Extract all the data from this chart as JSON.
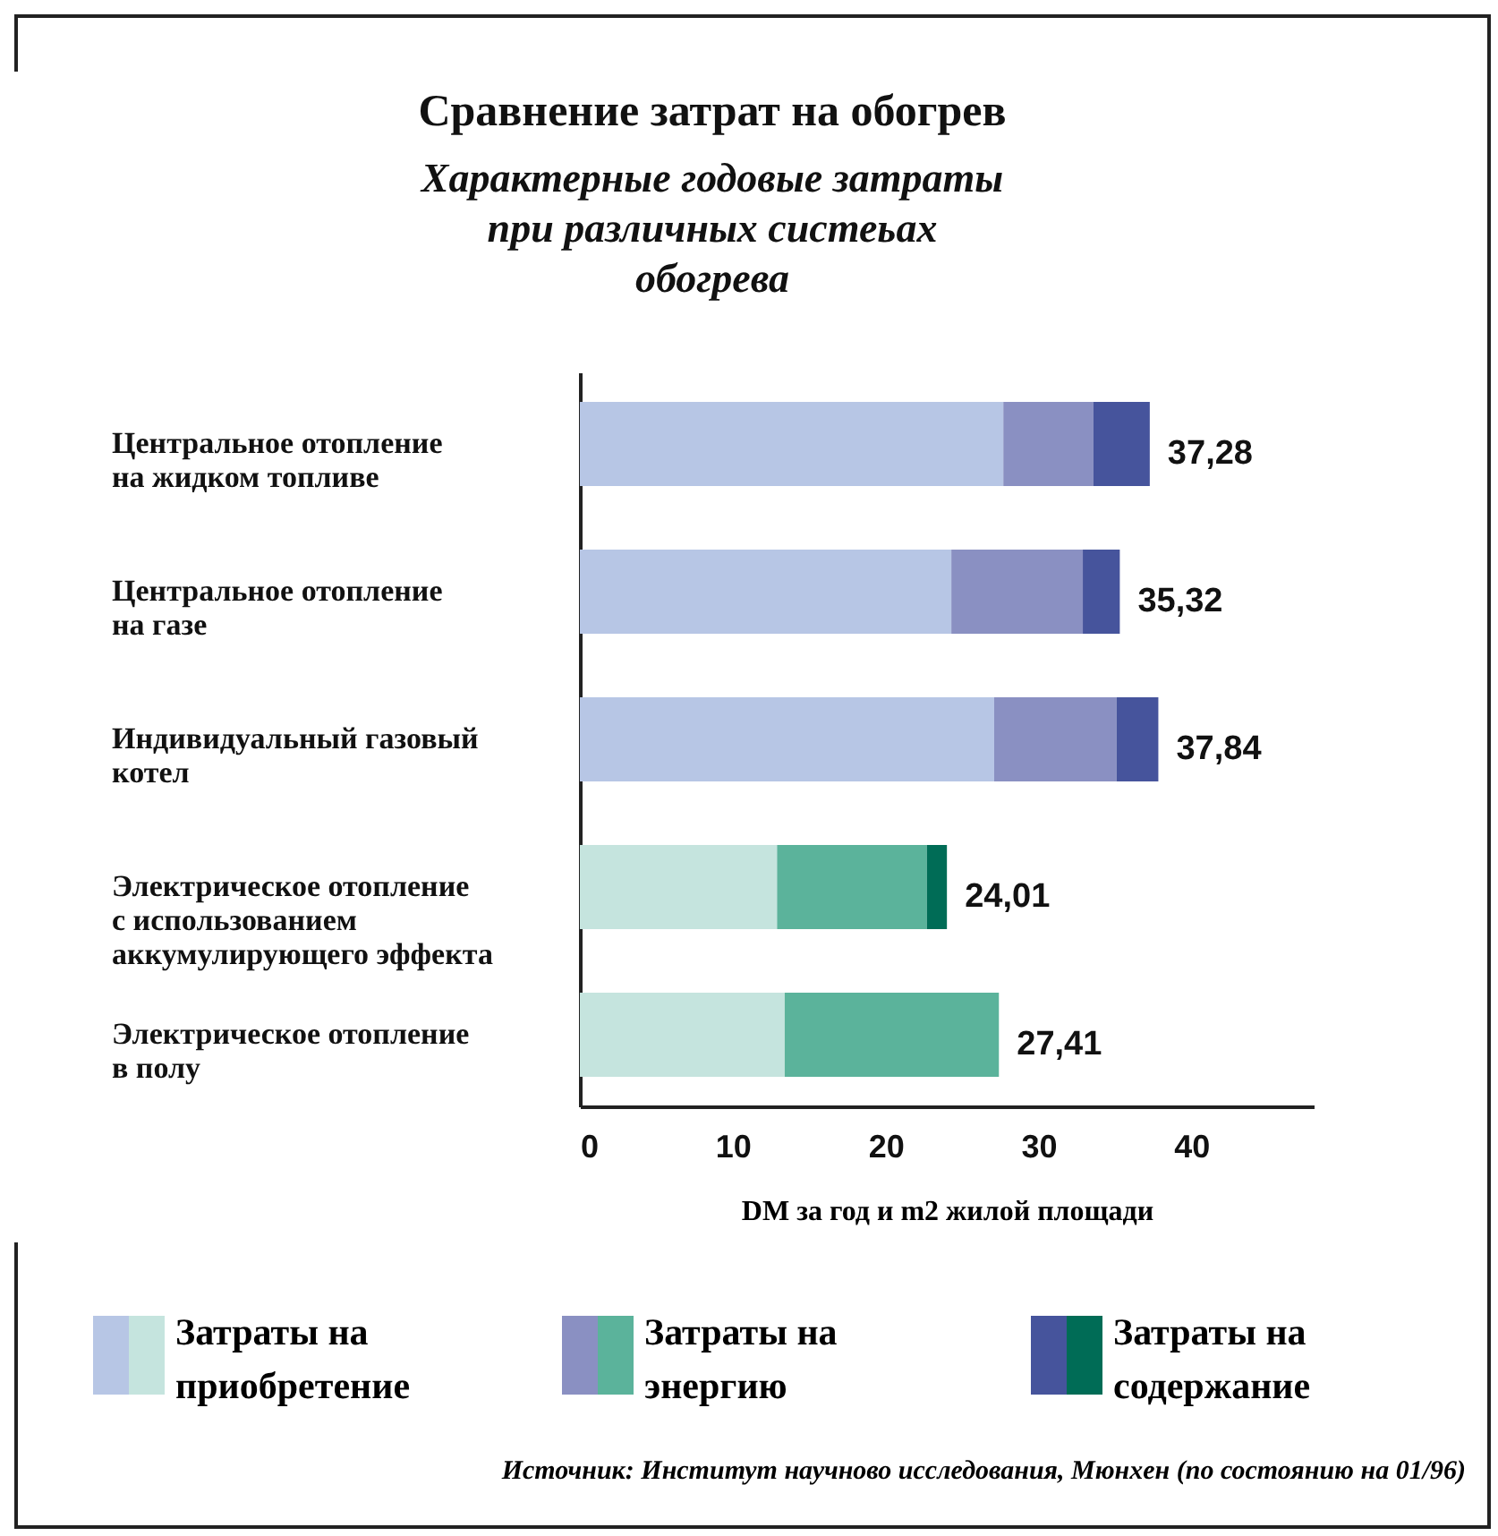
{
  "chart_data": {
    "type": "bar",
    "orientation": "horizontal",
    "stacked": true,
    "title": "Сравнение затрат на обогрев",
    "subtitle": "Характерные годовые затраты при различных систеьах обогрева",
    "categories": [
      "Центральное отопление на жидком топливе",
      "Центральное отопление на газе",
      "Индивидуальный газовый котел",
      "Электрическое отопление с использованием аккумулирующего эффекта",
      "Электрическое отопление в полу"
    ],
    "series": [
      {
        "name": "Затраты на приобретение",
        "colors": [
          "#b7c6e5",
          "#b7c6e5",
          "#b7c6e5",
          "#c5e4de",
          "#c5e4de"
        ],
        "values": [
          27.7,
          24.3,
          27.1,
          12.9,
          13.4
        ]
      },
      {
        "name": "Затраты на энергию",
        "colors": [
          "#8a90c2",
          "#8a90c2",
          "#8a90c2",
          "#5bb39b",
          "#5bb39b"
        ],
        "values": [
          5.9,
          8.6,
          8.0,
          9.8,
          14.01
        ]
      },
      {
        "name": "Затраты на содержание",
        "colors": [
          "#46549c",
          "#46549c",
          "#46549c",
          "#006c56",
          "#006c56"
        ],
        "values": [
          3.68,
          2.42,
          2.74,
          1.31,
          null
        ]
      }
    ],
    "totals": [
      "37,28",
      "35,32",
      "37,84",
      "24,01",
      "27,41"
    ],
    "xlabel": "DM за год и  m2 жилой площади",
    "xlim": [
      0,
      48
    ],
    "xticks": [
      0,
      10,
      20,
      30,
      40
    ],
    "grid": false,
    "legend": "bottom",
    "annotations": [
      "Источник: Институт научново исследования, Мюнхен (по состоянию на 01/96)"
    ]
  }
}
